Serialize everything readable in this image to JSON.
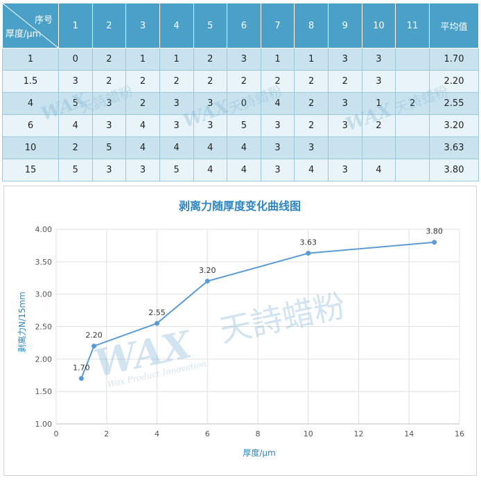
{
  "table": {
    "corner_top": "序号",
    "corner_bottom": "厚度/μm",
    "columns": [
      "1",
      "2",
      "3",
      "4",
      "5",
      "6",
      "7",
      "8",
      "9",
      "10",
      "11",
      "平均值"
    ],
    "rows": [
      {
        "thickness": "1",
        "values": [
          "0",
          "2",
          "1",
          "1",
          "2",
          "3",
          "1",
          "1",
          "3",
          "3",
          "",
          "1.70"
        ]
      },
      {
        "thickness": "1.5",
        "values": [
          "3",
          "2",
          "2",
          "2",
          "2",
          "2",
          "2",
          "2",
          "2",
          "3",
          "",
          "2.20"
        ]
      },
      {
        "thickness": "4",
        "values": [
          "5",
          "3",
          "2",
          "3",
          "3",
          "0",
          "4",
          "2",
          "3",
          "1",
          "2",
          "2.55"
        ]
      },
      {
        "thickness": "6",
        "values": [
          "4",
          "3",
          "4",
          "3",
          "3",
          "5",
          "3",
          "2",
          "3",
          "2",
          "",
          "3.20"
        ]
      },
      {
        "thickness": "10",
        "values": [
          "2",
          "5",
          "4",
          "4",
          "4",
          "4",
          "3",
          "3",
          "",
          "",
          "",
          "3.63"
        ]
      },
      {
        "thickness": "15",
        "values": [
          "5",
          "3",
          "3",
          "5",
          "4",
          "4",
          "3",
          "4",
          "3",
          "4",
          "",
          "3.80"
        ]
      }
    ]
  },
  "watermark": {
    "brand": "WAX",
    "name": "天詩蜡粉",
    "tagline": "Wax Product Innovation"
  },
  "chart_data": {
    "type": "line",
    "title": "剥离力随厚度变化曲线图",
    "xlabel": "厚度/μm",
    "ylabel": "剥离力N/15mm",
    "xlim": [
      0,
      16
    ],
    "ylim": [
      1.0,
      4.0
    ],
    "x_ticks": [
      "0",
      "2",
      "4",
      "6",
      "8",
      "10",
      "12",
      "14",
      "16"
    ],
    "y_ticks": [
      "1.00",
      "1.50",
      "2.00",
      "2.50",
      "3.00",
      "3.50",
      "4.00"
    ],
    "grid": true,
    "legend": "none",
    "series": [
      {
        "x": [
          1,
          1.5,
          4,
          6,
          10,
          15
        ],
        "values": [
          1.7,
          2.2,
          2.55,
          3.2,
          3.63,
          3.8
        ],
        "labels": [
          "1.70",
          "2.20",
          "2.55",
          "3.20",
          "3.63",
          "3.80"
        ],
        "color": "#5b9bd5"
      }
    ]
  }
}
